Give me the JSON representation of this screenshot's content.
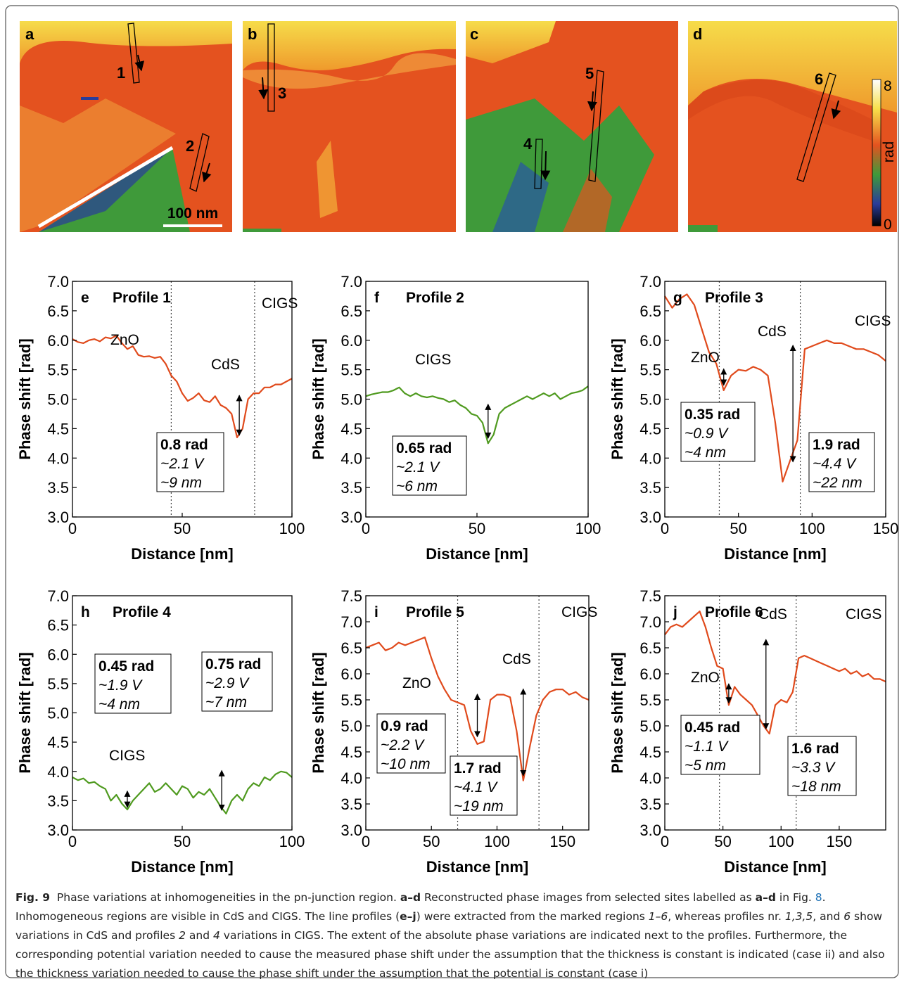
{
  "images": [
    {
      "label": "a",
      "markers": [
        "1",
        "2"
      ],
      "scale_bar": "100 nm"
    },
    {
      "label": "b",
      "markers": [
        "3"
      ]
    },
    {
      "label": "c",
      "markers": [
        "4",
        "5"
      ]
    },
    {
      "label": "d",
      "markers": [
        "6"
      ],
      "colorbar": {
        "ticks": [
          0,
          8
        ],
        "label": "rad"
      }
    }
  ],
  "chart_data": [
    {
      "type": "line",
      "panel": "e",
      "title": "Profile 1",
      "x_label": "Distance [nm]",
      "y_label": "Phase shift [rad]",
      "color": "#e04a1c",
      "x": [
        0,
        2.5,
        5,
        7.5,
        10,
        12.5,
        15,
        17.5,
        20,
        22.5,
        25,
        27.5,
        30,
        32.5,
        35,
        37.5,
        40,
        42.5,
        45,
        47.5,
        50,
        52.5,
        55,
        57.5,
        60,
        62.5,
        65,
        67.5,
        70,
        72.5,
        75,
        77.5,
        80,
        82.5,
        85,
        87.5,
        90,
        92.5,
        95,
        97.5,
        100
      ],
      "values": [
        6.02,
        5.97,
        5.95,
        6.0,
        6.02,
        5.98,
        6.05,
        6.03,
        6.08,
        5.95,
        5.85,
        5.9,
        5.75,
        5.72,
        5.73,
        5.7,
        5.72,
        5.6,
        5.4,
        5.3,
        5.1,
        4.97,
        5.02,
        5.1,
        4.98,
        4.95,
        5.05,
        4.9,
        4.85,
        4.75,
        4.35,
        4.5,
        5.0,
        5.1,
        5.1,
        5.2,
        5.2,
        5.25,
        5.25,
        5.3,
        5.35
      ],
      "xlim": [
        0,
        100
      ],
      "xticks": [
        0,
        50,
        100
      ],
      "ylim": [
        3,
        7
      ],
      "yticks": [
        {
          "value": 3,
          "label": "3.0"
        },
        3.5,
        {
          "value": 4,
          "label": "4.0"
        },
        4.5,
        {
          "value": 5,
          "label": "5.0"
        },
        5.5,
        {
          "value": 6,
          "label": "6.0"
        },
        6.5,
        {
          "value": 7,
          "label": "7.0"
        }
      ],
      "labels": [
        "ZnO",
        "CdS",
        "CIGS"
      ],
      "vlines": [
        45,
        83
      ],
      "arrows": [
        {
          "x": 76,
          "y1": 4.35,
          "y2": 5.1
        }
      ],
      "boxes": [
        [
          "0.8 rad",
          "~2.1 V",
          "~9 nm"
        ]
      ]
    },
    {
      "type": "line",
      "panel": "f",
      "title": "Profile 2",
      "x_label": "Distance [nm]",
      "y_label": "Phase shift [rad]",
      "color": "#4f9a1f",
      "x": [
        0,
        2.5,
        5,
        7.5,
        10,
        12.5,
        15,
        17.5,
        20,
        22.5,
        25,
        27.5,
        30,
        32.5,
        35,
        37.5,
        40,
        42.5,
        45,
        47.5,
        50,
        52.5,
        55,
        57.5,
        60,
        62.5,
        65,
        67.5,
        70,
        72.5,
        75,
        77.5,
        80,
        82.5,
        85,
        87.5,
        90,
        92.5,
        95,
        97.5,
        100
      ],
      "values": [
        5.05,
        5.08,
        5.1,
        5.12,
        5.12,
        5.15,
        5.2,
        5.1,
        5.05,
        5.1,
        5.05,
        5.03,
        5.05,
        5.02,
        5.0,
        4.95,
        4.98,
        4.9,
        4.85,
        4.75,
        4.72,
        4.6,
        4.25,
        4.4,
        4.75,
        4.85,
        4.9,
        4.95,
        5.0,
        5.05,
        5.0,
        5.05,
        5.1,
        5.05,
        5.1,
        5.0,
        5.05,
        5.1,
        5.12,
        5.15,
        5.22
      ],
      "xlim": [
        0,
        100
      ],
      "xticks": [
        0,
        50,
        100
      ],
      "ylim": [
        3,
        7
      ],
      "yticks": [
        {
          "value": 3,
          "label": "3.0"
        },
        3.5,
        {
          "value": 4,
          "label": "4.0"
        },
        4.5,
        {
          "value": 5,
          "label": "5.0"
        },
        5.5,
        {
          "value": 6,
          "label": "6.0"
        },
        6.5,
        {
          "value": 7,
          "label": "7.0"
        }
      ],
      "labels": [
        "CIGS"
      ],
      "vlines": [],
      "arrows": [
        {
          "x": 55,
          "y1": 4.3,
          "y2": 4.95
        }
      ],
      "boxes": [
        [
          "0.65 rad",
          "~2.1 V",
          "~6 nm"
        ]
      ]
    },
    {
      "type": "line",
      "panel": "g",
      "title": "Profile 3",
      "x_label": "Distance [nm]",
      "y_label": "Phase shift [rad]",
      "color": "#e04a1c",
      "x": [
        0,
        5,
        10,
        15,
        20,
        25,
        30,
        35,
        40,
        45,
        50,
        55,
        60,
        65,
        70,
        75,
        80,
        85,
        90,
        95,
        100,
        105,
        110,
        115,
        120,
        125,
        130,
        135,
        140,
        145,
        150
      ],
      "values": [
        6.75,
        6.55,
        6.7,
        6.78,
        6.6,
        6.2,
        5.8,
        5.6,
        5.15,
        5.4,
        5.5,
        5.48,
        5.55,
        5.5,
        5.4,
        4.6,
        3.6,
        3.95,
        4.3,
        5.85,
        5.9,
        5.95,
        6.0,
        5.95,
        5.95,
        5.9,
        5.85,
        5.85,
        5.8,
        5.75,
        5.65
      ],
      "xlim": [
        0,
        150
      ],
      "xticks": [
        0,
        50,
        100,
        150
      ],
      "ylim": [
        3,
        7
      ],
      "yticks": [
        {
          "value": 3,
          "label": "3.0"
        },
        3.5,
        {
          "value": 4,
          "label": "4.0"
        },
        4.5,
        {
          "value": 5,
          "label": "5.0"
        },
        5.5,
        {
          "value": 6,
          "label": "6.0"
        },
        6.5,
        {
          "value": 7,
          "label": "7.0"
        }
      ],
      "labels": [
        "ZnO",
        "CdS",
        "CIGS"
      ],
      "vlines": [
        37,
        92
      ],
      "arrows": [
        {
          "x": 40,
          "y1": 5.2,
          "y2": 5.55
        },
        {
          "x": 87,
          "y1": 3.9,
          "y2": 5.95
        }
      ],
      "boxes": [
        [
          "0.35 rad",
          "~0.9 V",
          "~4 nm"
        ],
        [
          "1.9 rad",
          "~4.4 V",
          "~22 nm"
        ]
      ]
    },
    {
      "type": "line",
      "panel": "h",
      "title": "Profile 4",
      "x_label": "Distance [nm]",
      "y_label": "Phase shift [rad]",
      "color": "#4f9a1f",
      "x": [
        0,
        2.5,
        5,
        7.5,
        10,
        12.5,
        15,
        17.5,
        20,
        22.5,
        25,
        27.5,
        30,
        32.5,
        35,
        37.5,
        40,
        42.5,
        45,
        47.5,
        50,
        52.5,
        55,
        57.5,
        60,
        62.5,
        65,
        67.5,
        70,
        72.5,
        75,
        77.5,
        80,
        82.5,
        85,
        87.5,
        90,
        92.5,
        95,
        97.5,
        100
      ],
      "values": [
        3.9,
        3.85,
        3.88,
        3.8,
        3.82,
        3.75,
        3.7,
        3.5,
        3.6,
        3.45,
        3.35,
        3.5,
        3.6,
        3.7,
        3.8,
        3.65,
        3.7,
        3.8,
        3.7,
        3.6,
        3.75,
        3.7,
        3.55,
        3.65,
        3.6,
        3.7,
        3.55,
        3.4,
        3.28,
        3.5,
        3.6,
        3.5,
        3.7,
        3.8,
        3.75,
        3.9,
        3.85,
        3.95,
        4.0,
        3.98,
        3.9
      ],
      "xlim": [
        0,
        100
      ],
      "xticks": [
        0,
        50,
        100
      ],
      "ylim": [
        3,
        7
      ],
      "yticks": [
        {
          "value": 3,
          "label": "3.0"
        },
        3.5,
        {
          "value": 4,
          "label": "4.0"
        },
        4.5,
        {
          "value": 5,
          "label": "5.0"
        },
        5.5,
        {
          "value": 6,
          "label": "6.0"
        },
        6.5,
        {
          "value": 7,
          "label": "7.0"
        }
      ],
      "labels": [
        "CIGS"
      ],
      "vlines": [],
      "arrows": [
        {
          "x": 25,
          "y1": 3.35,
          "y2": 3.7
        },
        {
          "x": 68,
          "y1": 3.3,
          "y2": 4.05
        }
      ],
      "boxes": [
        [
          "0.45 rad",
          "~1.9 V",
          "~4 nm"
        ],
        [
          "0.75 rad",
          "~2.9 V",
          "~7 nm"
        ]
      ]
    },
    {
      "type": "line",
      "panel": "i",
      "title": "Profile 5",
      "x_label": "Distance [nm]",
      "y_label": "Phase shift [rad]",
      "color": "#e04a1c",
      "x": [
        0,
        5,
        10,
        15,
        20,
        25,
        30,
        35,
        40,
        45,
        50,
        55,
        60,
        65,
        70,
        75,
        80,
        85,
        90,
        95,
        100,
        105,
        110,
        115,
        120,
        125,
        130,
        135,
        140,
        145,
        150,
        155,
        160,
        165,
        170
      ],
      "values": [
        6.5,
        6.55,
        6.6,
        6.45,
        6.5,
        6.6,
        6.55,
        6.6,
        6.65,
        6.7,
        6.3,
        5.95,
        5.7,
        5.5,
        5.45,
        5.4,
        4.9,
        4.65,
        4.7,
        5.5,
        5.6,
        5.6,
        5.55,
        4.9,
        3.95,
        4.6,
        5.2,
        5.5,
        5.65,
        5.7,
        5.7,
        5.6,
        5.65,
        5.55,
        5.5
      ],
      "xlim": [
        0,
        170
      ],
      "xticks": [
        0,
        50,
        100,
        150
      ],
      "ylim": [
        3,
        7.5
      ],
      "yticks": [
        {
          "value": 3,
          "label": "3.0"
        },
        3.5,
        {
          "value": 4,
          "label": "4.0"
        },
        4.5,
        {
          "value": 5,
          "label": "5.0"
        },
        5.5,
        {
          "value": 6,
          "label": "6.0"
        },
        6.5,
        {
          "value": 7,
          "label": "7.0"
        },
        7.5
      ],
      "labels": [
        "ZnO",
        "CdS",
        "CIGS"
      ],
      "vlines": [
        70,
        132
      ],
      "arrows": [
        {
          "x": 85,
          "y1": 4.75,
          "y2": 5.65
        },
        {
          "x": 120,
          "y1": 4.0,
          "y2": 5.75
        }
      ],
      "boxes": [
        [
          "0.9 rad",
          "~2.2 V",
          "~10 nm"
        ],
        [
          "1.7 rad",
          "~4.1 V",
          "~19 nm"
        ]
      ]
    },
    {
      "type": "line",
      "panel": "j",
      "title": "Profile 6",
      "x_label": "Distance [nm]",
      "y_label": "Phase shift [rad]",
      "color": "#e04a1c",
      "x": [
        0,
        5,
        10,
        15,
        20,
        25,
        30,
        35,
        40,
        45,
        50,
        55,
        60,
        65,
        70,
        75,
        80,
        85,
        90,
        95,
        100,
        105,
        110,
        115,
        120,
        125,
        130,
        135,
        140,
        145,
        150,
        155,
        160,
        165,
        170,
        175,
        180,
        185,
        190
      ],
      "values": [
        6.75,
        6.9,
        6.95,
        6.9,
        7.0,
        7.1,
        7.2,
        6.9,
        6.5,
        6.15,
        6.1,
        5.4,
        5.75,
        5.6,
        5.5,
        5.4,
        5.2,
        5.0,
        4.85,
        5.4,
        5.5,
        5.45,
        5.65,
        6.3,
        6.35,
        6.3,
        6.25,
        6.2,
        6.15,
        6.1,
        6.05,
        6.1,
        6.0,
        6.05,
        5.95,
        6.0,
        5.9,
        5.9,
        5.85
      ],
      "xlim": [
        0,
        190
      ],
      "xticks": [
        0,
        50,
        100,
        150
      ],
      "ylim": [
        3,
        7.5
      ],
      "yticks": [
        {
          "value": 3,
          "label": "3.0"
        },
        3.5,
        {
          "value": 4,
          "label": "4.0"
        },
        4.5,
        {
          "value": 5,
          "label": "5.0"
        },
        5.5,
        {
          "value": 6,
          "label": "6.0"
        },
        6.5,
        {
          "value": 7,
          "label": "7.0"
        },
        7.5
      ],
      "labels": [
        "ZnO",
        "CdS",
        "CIGS"
      ],
      "vlines": [
        47,
        113
      ],
      "arrows": [
        {
          "x": 55,
          "y1": 5.4,
          "y2": 5.85
        },
        {
          "x": 87,
          "y1": 4.9,
          "y2": 6.7
        }
      ],
      "boxes": [
        [
          "0.45 rad",
          "~1.1 V",
          "~5 nm"
        ],
        [
          "1.6 rad",
          "~3.3 V",
          "~18 nm"
        ]
      ]
    }
  ],
  "caption": [
    {
      "text": "Fig. 9",
      "style": "b"
    },
    {
      "text": "  Phase variations at inhomogeneities in the pn-junction region. "
    },
    {
      "text": "a–d",
      "style": "b"
    },
    {
      "text": " Reconstructed phase images from selected sites labelled as "
    },
    {
      "text": "a–d",
      "style": "b"
    },
    {
      "text": " in Fig. "
    },
    {
      "text": "8",
      "style": "link"
    },
    {
      "text": ". Inhomogeneous regions are visible in CdS and CIGS. The line profiles ("
    },
    {
      "text": "e–j",
      "style": "b"
    },
    {
      "text": ") were extracted from the marked regions "
    },
    {
      "text": "1–6",
      "style": "i"
    },
    {
      "text": ", whereas profiles nr. "
    },
    {
      "text": "1,3,5",
      "style": "i"
    },
    {
      "text": ", and "
    },
    {
      "text": "6",
      "style": "i"
    },
    {
      "text": " show variations in CdS and profiles "
    },
    {
      "text": "2",
      "style": "i"
    },
    {
      "text": " and "
    },
    {
      "text": "4",
      "style": "i"
    },
    {
      "text": " variations in CIGS. The extent of the absolute phase variations are indicated next to the profiles. Furthermore, the corresponding potential variation needed to cause the measured phase shift under the assumption that the thickness is constant is indicated (case ii) and also the thickness variation needed to cause the phase shift under the assumption that the potential is constant (case i)"
    }
  ]
}
